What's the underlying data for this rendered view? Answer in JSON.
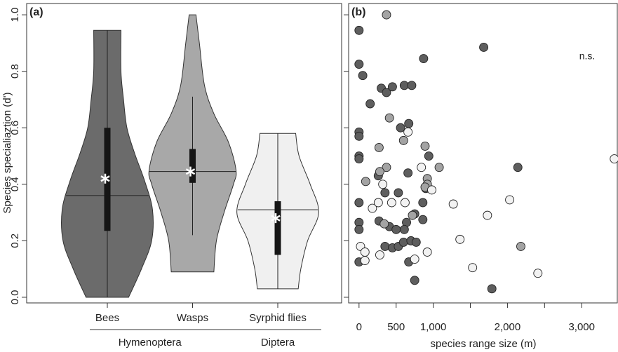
{
  "chart_data": [
    {
      "type": "violin",
      "panel_label": "(a)",
      "y_label": "Species specialiaztion (d')",
      "categories": [
        "Bees",
        "Wasps",
        "Syrphid flies"
      ],
      "groups": [
        {
          "label": "Hymenoptera",
          "span": [
            0,
            1
          ]
        },
        {
          "label": "Diptera",
          "span": [
            2,
            2
          ]
        }
      ],
      "ylim": [
        -0.02,
        1.04
      ],
      "yticks": [
        {
          "value": 0,
          "label": "0.0"
        },
        0.2,
        0.4,
        0.6,
        0.8,
        {
          "value": 1,
          "label": "1.0"
        }
      ],
      "violins": [
        {
          "color": "#6b6b6b",
          "whisker_low": 0.0,
          "whisker_high": 0.945,
          "q1": 0.235,
          "median": 0.36,
          "q3": 0.6,
          "mean": 0.42,
          "outline": {
            "y": [
              0.0,
              0.1,
              0.2,
              0.31,
              0.41,
              0.51,
              0.6,
              0.7,
              0.8,
              0.945
            ],
            "halfwidth": [
              0.25,
              0.4,
              0.52,
              0.53,
              0.44,
              0.32,
              0.23,
              0.19,
              0.16,
              0.16
            ]
          }
        },
        {
          "color": "#a8a8a8",
          "whisker_low": 0.22,
          "whisker_high": 0.71,
          "q1": 0.405,
          "median": 0.445,
          "q3": 0.525,
          "mean": 0.445,
          "outline": {
            "y": [
              0.09,
              0.2,
              0.3,
              0.4,
              0.45,
              0.55,
              0.65,
              0.75,
              0.9,
              1.0
            ],
            "halfwidth": [
              0.25,
              0.28,
              0.37,
              0.48,
              0.51,
              0.42,
              0.25,
              0.14,
              0.08,
              0.04
            ]
          }
        },
        {
          "color": "#f0f0f0",
          "whisker_low": 0.03,
          "whisker_high": 0.58,
          "q1": 0.15,
          "median": 0.31,
          "q3": 0.34,
          "mean": 0.28,
          "outline": {
            "y": [
              0.03,
              0.1,
              0.2,
              0.3,
              0.4,
              0.5,
              0.58
            ],
            "halfwidth": [
              0.24,
              0.27,
              0.35,
              0.48,
              0.38,
              0.25,
              0.21
            ]
          }
        }
      ]
    },
    {
      "type": "scatter",
      "panel_label": "(b)",
      "annotation": "n.s.",
      "x_label": "species range size (m)",
      "xlim": [
        -140,
        3480
      ],
      "ylim": [
        -0.02,
        1.04
      ],
      "xticks": [
        0,
        500,
        {
          "value": 1000,
          "label": "1,000"
        },
        {
          "value": 2000,
          "label": "2,000"
        },
        {
          "value": 3000,
          "label": "3,000"
        }
      ],
      "xtick_marks": [
        1500,
        2500
      ],
      "ytick_marks": [
        0,
        0.2,
        0.4,
        0.6,
        0.8,
        1.0
      ],
      "series": [
        {
          "color": "#5e5e5e",
          "x": [
            0,
            0,
            50,
            150,
            300,
            370,
            450,
            610,
            710,
            870,
            1680,
            0,
            0,
            0,
            0,
            560,
            670,
            940,
            660,
            260,
            350,
            530,
            900,
            0,
            860,
            860,
            750,
            0,
            0,
            270,
            410,
            500,
            640,
            610,
            0,
            350,
            450,
            530,
            600,
            700,
            770,
            670,
            750,
            1790,
            2140
          ],
          "values": [
            0.945,
            0.825,
            0.785,
            0.685,
            0.74,
            0.725,
            0.745,
            0.75,
            0.75,
            0.845,
            0.885,
            0.585,
            0.57,
            0.5,
            0.49,
            0.6,
            0.615,
            0.5,
            0.44,
            0.43,
            0.37,
            0.37,
            0.385,
            0.335,
            0.335,
            0.275,
            0.295,
            0.265,
            0.24,
            0.27,
            0.25,
            0.24,
            0.265,
            0.24,
            0.125,
            0.18,
            0.175,
            0.18,
            0.195,
            0.2,
            0.195,
            0.125,
            0.06,
            0.03,
            0.46
          ]
        },
        {
          "color": "#a3a3a3",
          "x": [
            370,
            410,
            600,
            270,
            370,
            280,
            890,
            1080,
            90,
            920,
            920,
            720,
            340,
            2180,
            890
          ],
          "values": [
            1.0,
            0.635,
            0.555,
            0.53,
            0.46,
            0.445,
            0.535,
            0.46,
            0.41,
            0.42,
            0.4,
            0.29,
            0.26,
            0.18,
            0.39
          ]
        },
        {
          "color": "#f2f2f2",
          "x": [
            660,
            840,
            320,
            980,
            180,
            440,
            620,
            1270,
            2030,
            1730,
            20,
            80,
            80,
            280,
            920,
            750,
            1360,
            1530,
            2410,
            3440,
            260
          ],
          "values": [
            0.585,
            0.46,
            0.4,
            0.38,
            0.315,
            0.335,
            0.335,
            0.33,
            0.345,
            0.29,
            0.18,
            0.16,
            0.13,
            0.15,
            0.16,
            0.135,
            0.205,
            0.105,
            0.085,
            0.49,
            0.335
          ]
        }
      ]
    }
  ]
}
